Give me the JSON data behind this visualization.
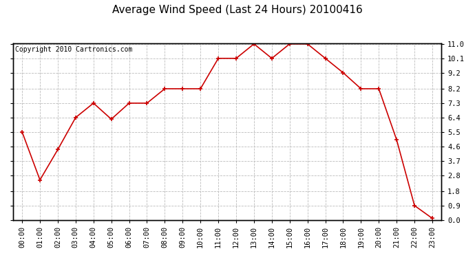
{
  "title": "Average Wind Speed (Last 24 Hours) 20100416",
  "copyright": "Copyright 2010 Cartronics.com",
  "x_labels": [
    "00:00",
    "01:00",
    "02:00",
    "03:00",
    "04:00",
    "05:00",
    "06:00",
    "07:00",
    "08:00",
    "09:00",
    "10:00",
    "11:00",
    "12:00",
    "13:00",
    "14:00",
    "15:00",
    "16:00",
    "17:00",
    "18:00",
    "19:00",
    "20:00",
    "21:00",
    "22:00",
    "23:00"
  ],
  "y_values": [
    5.5,
    2.5,
    4.4,
    6.4,
    7.3,
    6.3,
    7.3,
    7.3,
    8.2,
    8.2,
    8.2,
    10.1,
    10.1,
    11.0,
    10.1,
    11.0,
    11.0,
    10.1,
    9.2,
    8.2,
    8.2,
    5.0,
    0.9,
    0.1
  ],
  "y_ticks": [
    0.0,
    0.9,
    1.8,
    2.8,
    3.7,
    4.6,
    5.5,
    6.4,
    7.3,
    8.2,
    9.2,
    10.1,
    11.0
  ],
  "y_min": 0.0,
  "y_max": 11.0,
  "line_color": "#cc0000",
  "marker": "+",
  "marker_color": "#cc0000",
  "grid_color": "#bbbbbb",
  "bg_color": "#ffffff",
  "title_fontsize": 11,
  "copyright_fontsize": 7,
  "tick_fontsize": 7.5
}
